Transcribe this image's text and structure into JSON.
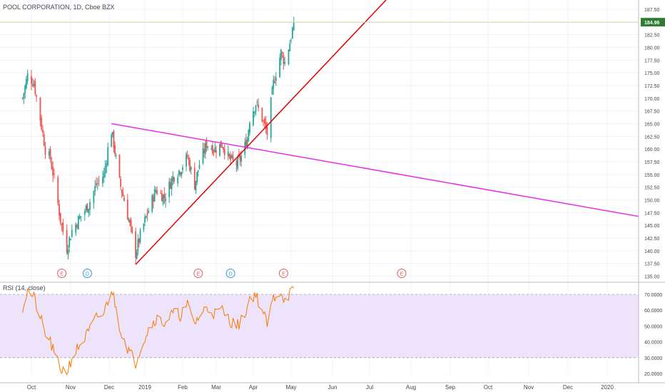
{
  "title": "POOL CORPORATION, 1D, Cboe BZX",
  "last_price_label": "184.96",
  "rsi_label": "RSI (14, close)",
  "colors": {
    "up": "#26a69a",
    "down": "#ef5350",
    "trend_red": "#e50000",
    "trend_magenta": "#e62ee6",
    "rsi_line": "#f57c00",
    "rsi_band": "#ede3fb",
    "last_price": "#2e7d32",
    "event_e": "#e65a5a",
    "event_d": "#2d9be0"
  },
  "chart_data": {
    "type": "candlestick",
    "x_tick_labels": [
      "Oct",
      "Nov",
      "Dec",
      "2019",
      "Feb",
      "Mar",
      "Apr",
      "May",
      "Jun",
      "Jul",
      "Aug",
      "Sep",
      "Oct",
      "Nov",
      "Dec",
      "2020"
    ],
    "price_axis": {
      "ylim": [
        135,
        187.5
      ],
      "ticks": [
        "135.00",
        "137.50",
        "140.00",
        "142.50",
        "145.00",
        "147.50",
        "150.00",
        "152.50",
        "155.00",
        "157.50",
        "160.00",
        "162.50",
        "165.00",
        "167.50",
        "170.00",
        "172.50",
        "175.00",
        "177.50",
        "180.00",
        "182.50",
        "185.00",
        "187.50"
      ]
    },
    "last_price": 184.96,
    "price_path": [
      [
        "2018-09-24",
        170
      ],
      [
        "2018-09-28",
        174.5
      ],
      [
        "2018-10-03",
        173
      ],
      [
        "2018-10-08",
        166
      ],
      [
        "2018-10-12",
        160
      ],
      [
        "2018-10-16",
        158
      ],
      [
        "2018-10-19",
        154
      ],
      [
        "2018-10-24",
        146
      ],
      [
        "2018-10-29",
        140.5
      ],
      [
        "2018-11-02",
        144
      ],
      [
        "2018-11-08",
        146.5
      ],
      [
        "2018-11-15",
        149
      ],
      [
        "2018-11-21",
        153
      ],
      [
        "2018-11-27",
        155
      ],
      [
        "2018-11-30",
        160
      ],
      [
        "2018-12-03",
        163.5
      ],
      [
        "2018-12-05",
        161
      ],
      [
        "2018-12-10",
        153.5
      ],
      [
        "2018-12-14",
        150
      ],
      [
        "2018-12-19",
        145
      ],
      [
        "2018-12-24",
        139.5
      ],
      [
        "2018-12-28",
        143
      ],
      [
        "2019-01-04",
        148
      ],
      [
        "2019-01-10",
        152
      ],
      [
        "2019-01-17",
        150.5
      ],
      [
        "2019-01-24",
        154.5
      ],
      [
        "2019-01-30",
        156
      ],
      [
        "2019-02-05",
        158.5
      ],
      [
        "2019-02-11",
        153
      ],
      [
        "2019-02-15",
        157
      ],
      [
        "2019-02-21",
        161
      ],
      [
        "2019-02-28",
        160
      ],
      [
        "2019-03-06",
        161
      ],
      [
        "2019-03-12",
        158
      ],
      [
        "2019-03-18",
        157
      ],
      [
        "2019-03-22",
        158.5
      ],
      [
        "2019-03-27",
        162
      ],
      [
        "2019-03-29",
        166
      ],
      [
        "2019-04-03",
        169
      ],
      [
        "2019-04-08",
        166
      ],
      [
        "2019-04-12",
        163
      ],
      [
        "2019-04-17",
        173
      ],
      [
        "2019-04-23",
        179
      ],
      [
        "2019-04-26",
        177
      ],
      [
        "2019-05-01",
        182
      ],
      [
        "2019-05-03",
        184.96
      ]
    ],
    "trendlines": [
      {
        "name": "rising support",
        "color": "red",
        "points": [
          [
            "2018-12-24",
            137.3
          ],
          [
            "2019-03-27",
            160.5
          ]
        ]
      },
      {
        "name": "falling resistance",
        "color": "magenta",
        "points": [
          [
            "2018-12-03",
            165
          ],
          [
            "2019-03-27",
            160.3
          ]
        ]
      }
    ],
    "events": [
      {
        "label": "E",
        "date": "2018-10-25"
      },
      {
        "label": "D",
        "date": "2018-11-14"
      },
      {
        "label": "E",
        "date": "2019-02-14"
      },
      {
        "label": "D",
        "date": "2019-03-13"
      },
      {
        "label": "E",
        "date": "2019-04-25"
      },
      {
        "label": "E",
        "date": "2019-07-25"
      }
    ],
    "rsi": {
      "ylim": [
        20,
        70
      ],
      "band": [
        30,
        70
      ],
      "ticks": [
        "20.0000",
        "30.0000",
        "40.0000",
        "50.0000",
        "60.0000",
        "70.0000"
      ],
      "path": [
        [
          "2018-09-24",
          62
        ],
        [
          "2018-09-28",
          72
        ],
        [
          "2018-10-03",
          68
        ],
        [
          "2018-10-08",
          55
        ],
        [
          "2018-10-12",
          45
        ],
        [
          "2018-10-16",
          40
        ],
        [
          "2018-10-19",
          32
        ],
        [
          "2018-10-24",
          23
        ],
        [
          "2018-10-29",
          21
        ],
        [
          "2018-11-02",
          30
        ],
        [
          "2018-11-08",
          38
        ],
        [
          "2018-11-15",
          46
        ],
        [
          "2018-11-21",
          55
        ],
        [
          "2018-11-27",
          58
        ],
        [
          "2018-11-30",
          66
        ],
        [
          "2018-12-03",
          74
        ],
        [
          "2018-12-05",
          68
        ],
        [
          "2018-12-10",
          50
        ],
        [
          "2018-12-14",
          42
        ],
        [
          "2018-12-19",
          33
        ],
        [
          "2018-12-24",
          27
        ],
        [
          "2018-12-28",
          36
        ],
        [
          "2019-01-04",
          48
        ],
        [
          "2019-01-10",
          55
        ],
        [
          "2019-01-17",
          52
        ],
        [
          "2019-01-24",
          58
        ],
        [
          "2019-01-30",
          57
        ],
        [
          "2019-02-05",
          63
        ],
        [
          "2019-02-11",
          52
        ],
        [
          "2019-02-15",
          56
        ],
        [
          "2019-02-21",
          62
        ],
        [
          "2019-02-28",
          58
        ],
        [
          "2019-03-06",
          60
        ],
        [
          "2019-03-12",
          54
        ],
        [
          "2019-03-18",
          50
        ],
        [
          "2019-03-22",
          53
        ],
        [
          "2019-03-27",
          62
        ],
        [
          "2019-03-29",
          68
        ],
        [
          "2019-04-03",
          70
        ],
        [
          "2019-04-08",
          60
        ],
        [
          "2019-04-12",
          51
        ],
        [
          "2019-04-17",
          68
        ],
        [
          "2019-04-23",
          72
        ],
        [
          "2019-04-26",
          66
        ],
        [
          "2019-05-01",
          72
        ],
        [
          "2019-05-03",
          71
        ]
      ]
    }
  }
}
